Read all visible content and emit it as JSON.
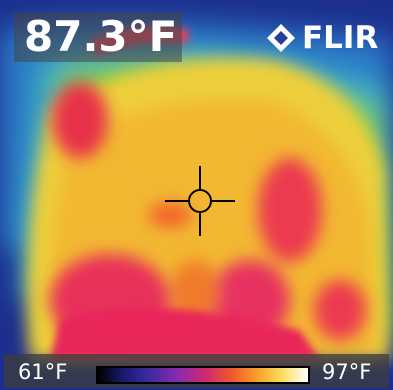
{
  "readout": {
    "temperature": "87.3°F"
  },
  "brand": {
    "name": "FLIR",
    "logo_icon": "flir-diamond-logo"
  },
  "scale": {
    "min_label": "61°F",
    "max_label": "97°F"
  },
  "colors": {
    "cold": "#1a2a8a",
    "cool": "#2aa0c8",
    "mid": "#7ac85a",
    "warm": "#f0d030",
    "hot": "#f07a2a",
    "hottest": "#e8325a"
  },
  "overlay": {
    "crosshair_icon": "crosshair-spot-meter"
  }
}
